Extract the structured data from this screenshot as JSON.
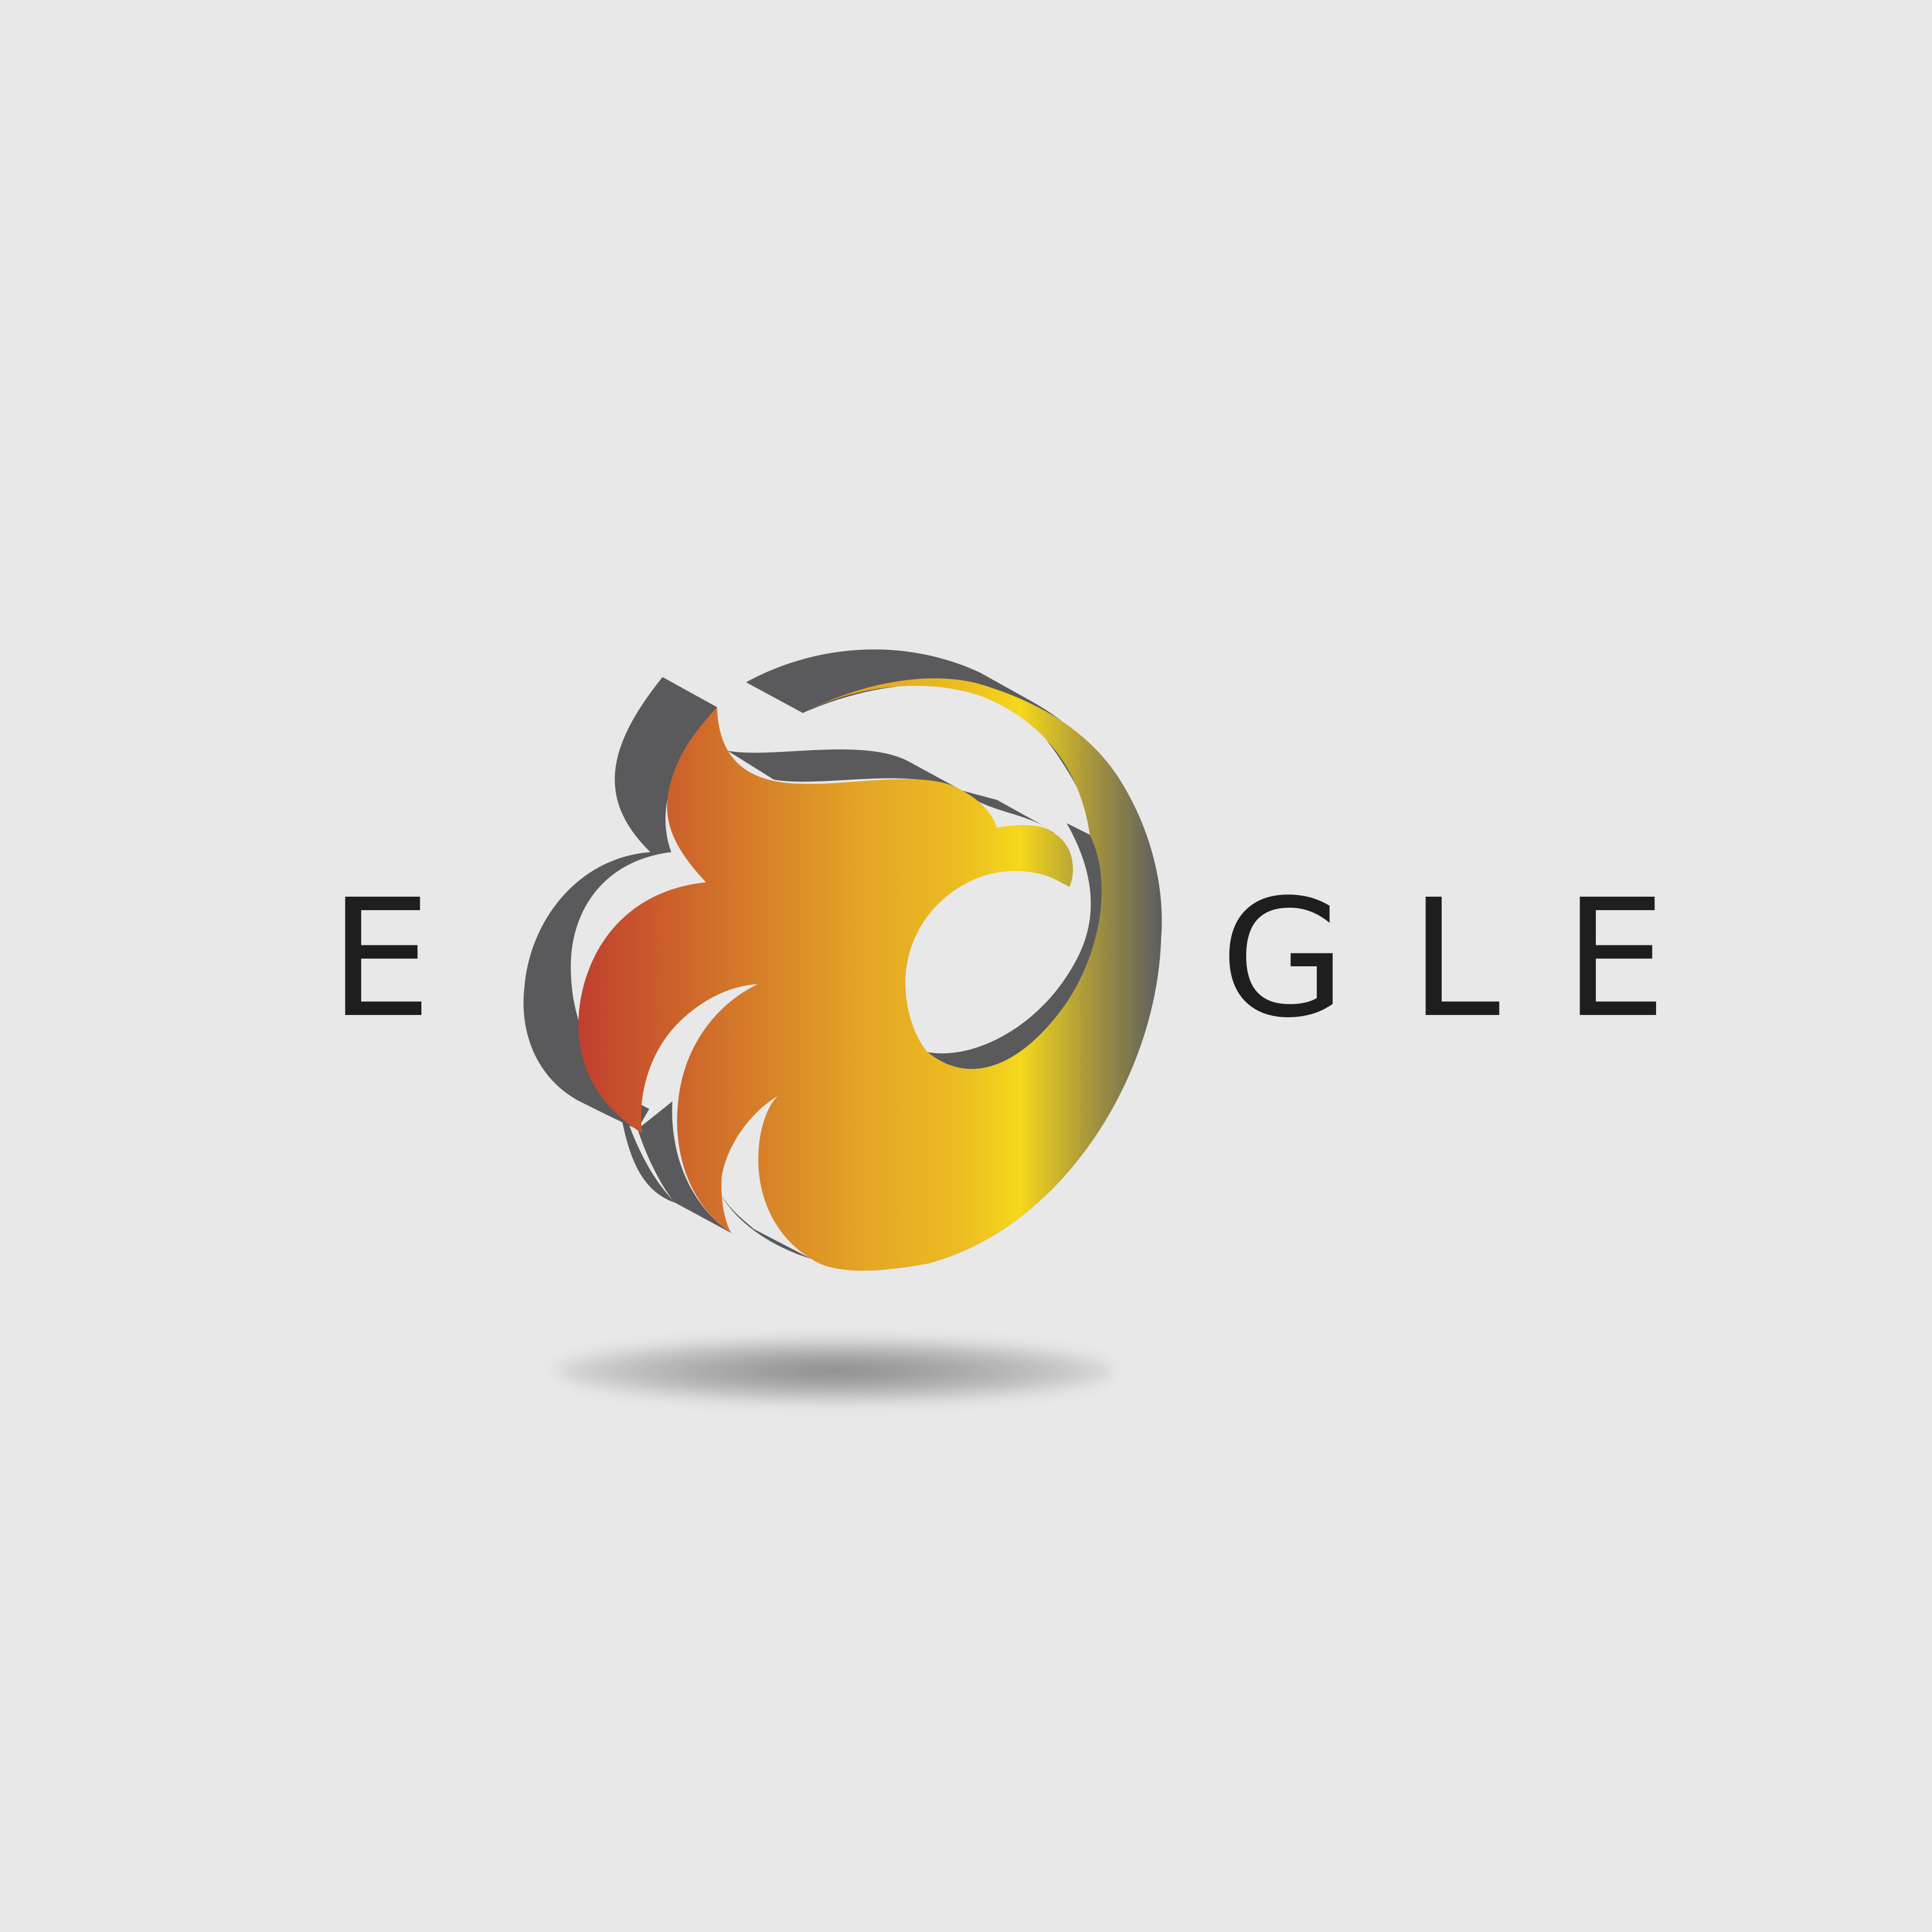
{
  "logo": {
    "text_before": "E",
    "text_after": "GLE",
    "emblem": "eagle-head-icon",
    "colors": {
      "background": "#e8e8e8",
      "text": "#1e1e1e",
      "shadow_layer": "#5a5a5c",
      "gradient": [
        "#c0402e",
        "#d2732a",
        "#e3a424",
        "#ecbd22",
        "#f5d81c",
        "#a8963c",
        "#5f5f5f"
      ]
    }
  }
}
